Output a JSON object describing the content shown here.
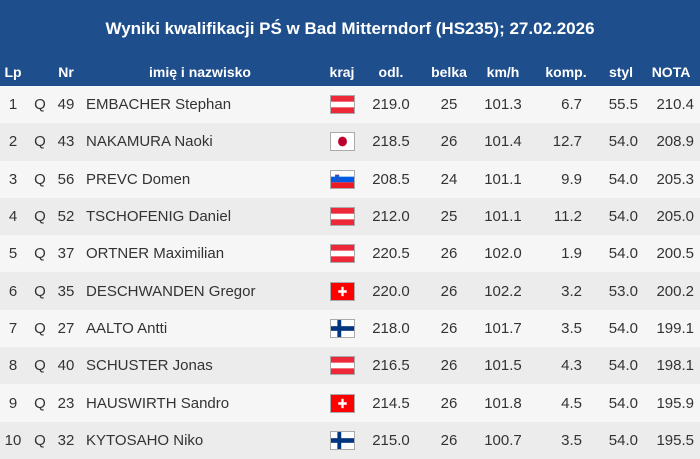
{
  "title": "Wyniki kwalifikacji PŚ w Bad Mitterndorf (HS235); 27.02.2026",
  "headers": {
    "lp": "Lp",
    "nr": "Nr",
    "name": "imię i nazwisko",
    "country": "kraj",
    "distance": "odl.",
    "gate": "belka",
    "speed": "km/h",
    "comp": "komp.",
    "style": "styl",
    "score": "NOTA"
  },
  "rows": [
    {
      "lp": "1",
      "status": "Q",
      "nr": "49",
      "name": "EMBACHER Stephan",
      "flag": "austria-flag",
      "distance": "219.0",
      "gate": "25",
      "speed": "101.3",
      "comp": "6.7",
      "style": "55.5",
      "score": "210.4"
    },
    {
      "lp": "2",
      "status": "Q",
      "nr": "43",
      "name": "NAKAMURA Naoki",
      "flag": "japan-flag",
      "distance": "218.5",
      "gate": "26",
      "speed": "101.4",
      "comp": "12.7",
      "style": "54.0",
      "score": "208.9"
    },
    {
      "lp": "3",
      "status": "Q",
      "nr": "56",
      "name": "PREVC Domen",
      "flag": "slovenia-flag",
      "distance": "208.5",
      "gate": "24",
      "speed": "101.1",
      "comp": "9.9",
      "style": "54.0",
      "score": "205.3"
    },
    {
      "lp": "4",
      "status": "Q",
      "nr": "52",
      "name": "TSCHOFENIG Daniel",
      "flag": "austria-flag",
      "distance": "212.0",
      "gate": "25",
      "speed": "101.1",
      "comp": "11.2",
      "style": "54.0",
      "score": "205.0"
    },
    {
      "lp": "5",
      "status": "Q",
      "nr": "37",
      "name": "ORTNER Maximilian",
      "flag": "austria-flag",
      "distance": "220.5",
      "gate": "26",
      "speed": "102.0",
      "comp": "1.9",
      "style": "54.0",
      "score": "200.5"
    },
    {
      "lp": "6",
      "status": "Q",
      "nr": "35",
      "name": "DESCHWANDEN Gregor",
      "flag": "switzerland-flag",
      "distance": "220.0",
      "gate": "26",
      "speed": "102.2",
      "comp": "3.2",
      "style": "53.0",
      "score": "200.2"
    },
    {
      "lp": "7",
      "status": "Q",
      "nr": "27",
      "name": "AALTO Antti",
      "flag": "finland-flag",
      "distance": "218.0",
      "gate": "26",
      "speed": "101.7",
      "comp": "3.5",
      "style": "54.0",
      "score": "199.1"
    },
    {
      "lp": "8",
      "status": "Q",
      "nr": "40",
      "name": "SCHUSTER Jonas",
      "flag": "austria-flag",
      "distance": "216.5",
      "gate": "26",
      "speed": "101.5",
      "comp": "4.3",
      "style": "54.0",
      "score": "198.1"
    },
    {
      "lp": "9",
      "status": "Q",
      "nr": "23",
      "name": "HAUSWIRTH Sandro",
      "flag": "switzerland-flag",
      "distance": "214.5",
      "gate": "26",
      "speed": "101.8",
      "comp": "4.5",
      "style": "54.0",
      "score": "195.9"
    },
    {
      "lp": "10",
      "status": "Q",
      "nr": "32",
      "name": "KYTOSAHO Niko",
      "flag": "finland-flag",
      "distance": "215.0",
      "gate": "26",
      "speed": "100.7",
      "comp": "3.5",
      "style": "54.0",
      "score": "195.5"
    }
  ],
  "colors": {
    "header_bg": "#1e4e8c",
    "row_odd": "#f6f6f6",
    "row_even": "#ececec",
    "text": "#333333"
  }
}
